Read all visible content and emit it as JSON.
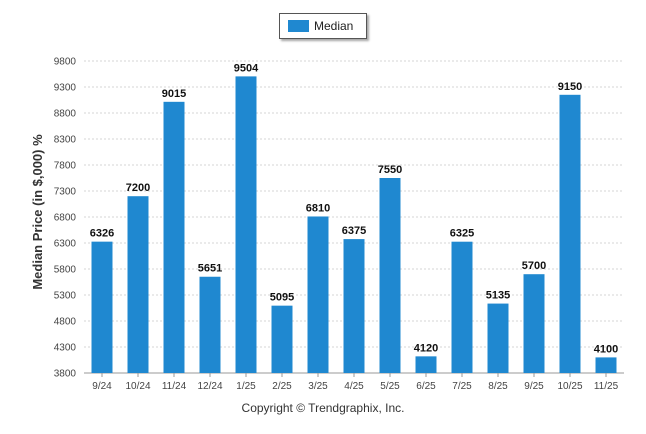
{
  "legend": {
    "label": "Median"
  },
  "footer": {
    "copyright": "Copyright © Trendgraphix, Inc."
  },
  "chart_data": {
    "type": "bar",
    "ylabel": "Median Price (in $,000) %",
    "xlabel": "",
    "ylim": [
      3800,
      9800
    ],
    "yticks": [
      3800,
      4300,
      4800,
      5300,
      5800,
      6300,
      6800,
      7300,
      7800,
      8300,
      8800,
      9300,
      9800
    ],
    "categories": [
      "9/24",
      "10/24",
      "11/24",
      "12/24",
      "1/25",
      "2/25",
      "3/25",
      "4/25",
      "5/25",
      "6/25",
      "7/25",
      "8/25",
      "9/25",
      "10/25",
      "11/25"
    ],
    "series": [
      {
        "name": "Median",
        "color": "#1f88d0",
        "values": [
          6326,
          7200,
          9015,
          5651,
          9504,
          5095,
          6810,
          6375,
          7550,
          4120,
          6325,
          5135,
          5700,
          9150,
          4100
        ]
      }
    ],
    "grid": true,
    "legend_position": "top-center",
    "data_labels": true
  }
}
